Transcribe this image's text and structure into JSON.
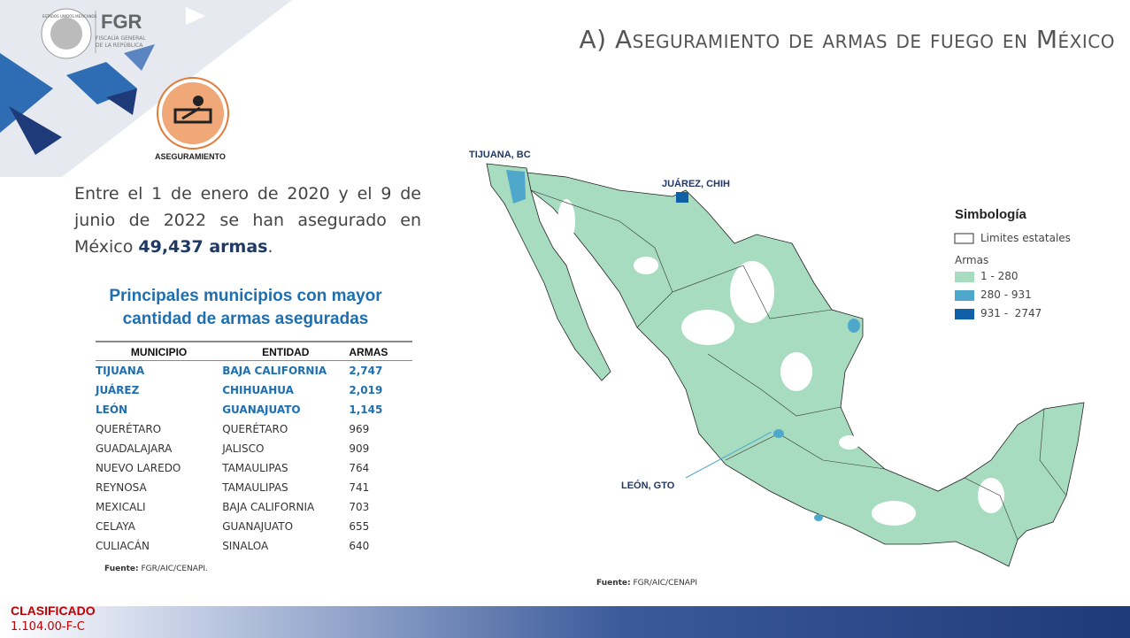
{
  "header": {
    "seal_text": "ESTADOS UNIDOS MEXICANOS",
    "org": "FGR",
    "org_line1": "FISCALÍA GENERAL",
    "org_line2": "DE LA REPÚBLICA",
    "title": "A) Aseguramiento de armas de fuego en México"
  },
  "icon_label": "ASEGURAMIENTO",
  "intro": {
    "text": "Entre el 1 de enero de 2020 y el 9 de junio de 2022 se han asegurado en México ",
    "highlight": "49,437 armas",
    "end": "."
  },
  "table": {
    "title": "Principales municipios con mayor cantidad de armas aseguradas",
    "columns": [
      "MUNICIPIO",
      "ENTIDAD",
      "ARMAS"
    ],
    "rows": [
      [
        "TIJUANA",
        "BAJA CALIFORNIA",
        "2,747"
      ],
      [
        "JUÁREZ",
        "CHIHUAHUA",
        "2,019"
      ],
      [
        "LEÓN",
        "GUANAJUATO",
        "1,145"
      ],
      [
        "QUERÉTARO",
        "QUERÉTARO",
        "969"
      ],
      [
        "GUADALAJARA",
        "JALISCO",
        "909"
      ],
      [
        "NUEVO LAREDO",
        "TAMAULIPAS",
        "764"
      ],
      [
        "REYNOSA",
        "TAMAULIPAS",
        "741"
      ],
      [
        "MEXICALI",
        "BAJA CALIFORNIA",
        "703"
      ],
      [
        "CELAYA",
        "GUANAJUATO",
        "655"
      ],
      [
        "CULIACÁN",
        "SINALOA",
        "640"
      ]
    ],
    "highlight_rows": 3,
    "source_label": "Fuente:",
    "source": "FGR/AIC/CENAPI."
  },
  "map": {
    "labels": [
      "TIJUANA, BC",
      "JUÁREZ, CHIH",
      "LEÓN, GTO"
    ],
    "legend": {
      "title": "Simbología",
      "boundaries": "Limites estatales",
      "group": "Armas",
      "classes": [
        {
          "label": "1 - 280",
          "color": "#a8dcc0"
        },
        {
          "label": "280 - 931",
          "color": "#4fa8cc"
        },
        {
          "label": "931 -  2747",
          "color": "#1060a8"
        }
      ]
    },
    "source_label": "Fuente:",
    "source": "FGR/AIC/CENAPI"
  },
  "footer": {
    "classification": "CLASIFICADO",
    "code": "1.104.00-F-C"
  }
}
